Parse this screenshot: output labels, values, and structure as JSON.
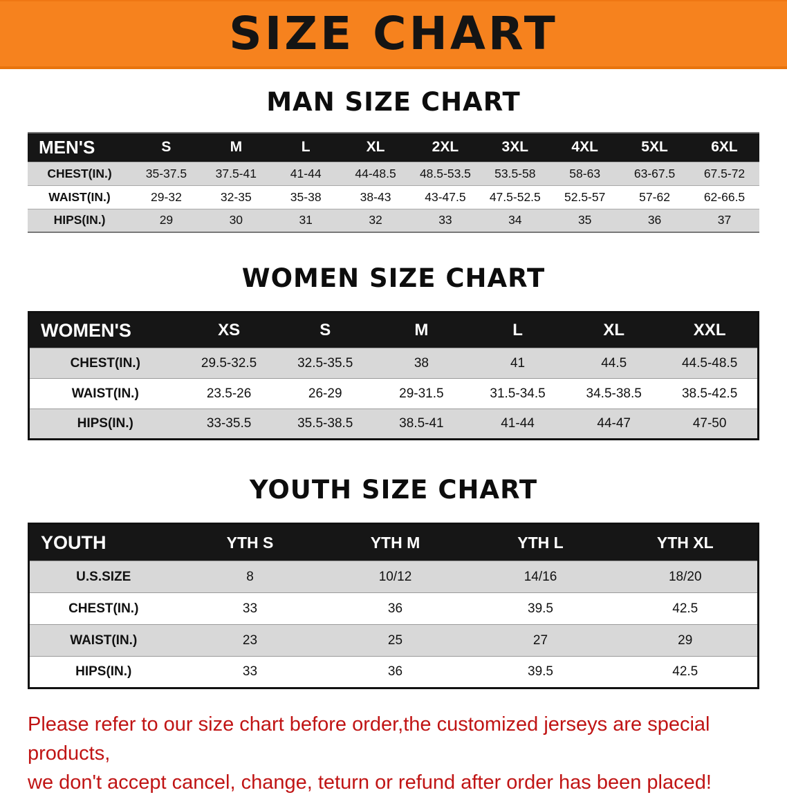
{
  "banner": {
    "title": "SIZE CHART",
    "bg_color": "#f6821e"
  },
  "charts": [
    {
      "title": "MAN SIZE CHART",
      "header": [
        "MEN'S",
        "S",
        "M",
        "L",
        "XL",
        "2XL",
        "3XL",
        "4XL",
        "5XL",
        "6XL"
      ],
      "rows": [
        [
          "CHEST(IN.)",
          "35-37.5",
          "37.5-41",
          "41-44",
          "44-48.5",
          "48.5-53.5",
          "53.5-58",
          "58-63",
          "63-67.5",
          "67.5-72"
        ],
        [
          "WAIST(IN.)",
          "29-32",
          "32-35",
          "35-38",
          "38-43",
          "43-47.5",
          "47.5-52.5",
          "52.5-57",
          "57-62",
          "62-66.5"
        ],
        [
          "HIPS(IN.)",
          "29",
          "30",
          "31",
          "32",
          "33",
          "34",
          "35",
          "36",
          "37"
        ]
      ]
    },
    {
      "title": "WOMEN SIZE CHART",
      "header": [
        "WOMEN'S",
        "XS",
        "S",
        "M",
        "L",
        "XL",
        "XXL"
      ],
      "rows": [
        [
          "CHEST(IN.)",
          "29.5-32.5",
          "32.5-35.5",
          "38",
          "41",
          "44.5",
          "44.5-48.5"
        ],
        [
          "WAIST(IN.)",
          "23.5-26",
          "26-29",
          "29-31.5",
          "31.5-34.5",
          "34.5-38.5",
          "38.5-42.5"
        ],
        [
          "HIPS(IN.)",
          "33-35.5",
          "35.5-38.5",
          "38.5-41",
          "41-44",
          "44-47",
          "47-50"
        ]
      ]
    },
    {
      "title": "YOUTH SIZE CHART",
      "header": [
        "YOUTH",
        "YTH S",
        "YTH M",
        "YTH L",
        "YTH XL"
      ],
      "rows": [
        [
          "U.S.SIZE",
          "8",
          "10/12",
          "14/16",
          "18/20"
        ],
        [
          "CHEST(IN.)",
          "33",
          "36",
          "39.5",
          "42.5"
        ],
        [
          "WAIST(IN.)",
          "23",
          "25",
          "27",
          "29"
        ],
        [
          "HIPS(IN.)",
          "33",
          "36",
          "39.5",
          "42.5"
        ]
      ]
    }
  ],
  "footer": {
    "line1": "Please refer to our size chart before order,the customized jerseys are special products,",
    "line2": "we don't accept cancel, change, teturn or refund after order has been placed!",
    "text_color": "#c01414"
  }
}
